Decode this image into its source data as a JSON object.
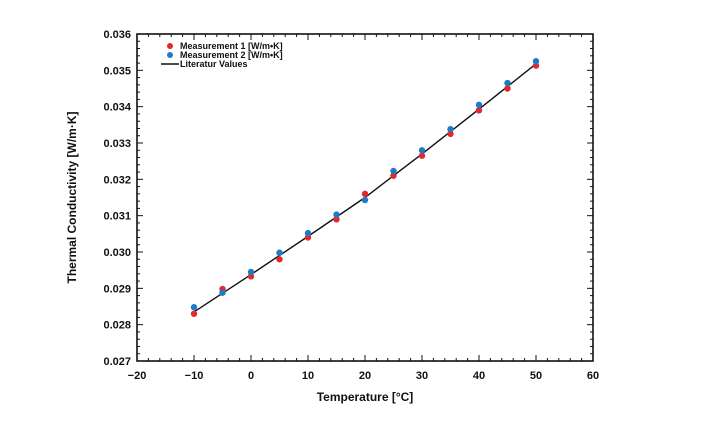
{
  "chart_data": {
    "type": "scatter",
    "xlabel": "Temperature  [°C]",
    "ylabel": "Thermal Conductivity [W/m·K]",
    "xlim": [
      -20,
      60
    ],
    "ylim": [
      0.027,
      0.036
    ],
    "x_ticks": [
      -20,
      -10,
      0,
      10,
      20,
      30,
      40,
      50,
      60
    ],
    "x_tick_labels": [
      "−20",
      "−10",
      "0",
      "10",
      "20",
      "30",
      "40",
      "50",
      "60"
    ],
    "y_ticks": [
      0.027,
      0.028,
      0.029,
      0.03,
      0.031,
      0.032,
      0.033,
      0.034,
      0.035,
      0.036
    ],
    "y_tick_labels": [
      "0.027",
      "0.028",
      "0.029",
      "0.030",
      "0.031",
      "0.032",
      "0.033",
      "0.034",
      "0.035",
      "0.036"
    ],
    "grid": false,
    "legend_position": "top-left",
    "series": [
      {
        "name": "Measurement 1 [W/m•K]",
        "kind": "scatter",
        "color": "#e0282e",
        "x": [
          -10,
          -5,
          0,
          5,
          10,
          15,
          20,
          25,
          30,
          35,
          40,
          45,
          50
        ],
        "y": [
          0.0283,
          0.02898,
          0.02933,
          0.0298,
          0.0304,
          0.0309,
          0.0316,
          0.0321,
          0.03265,
          0.03325,
          0.0339,
          0.0345,
          0.03513
        ]
      },
      {
        "name": "Measurement 2 [W/m•K]",
        "kind": "scatter",
        "color": "#1e7bc4",
        "x": [
          -10,
          -5,
          0,
          5,
          10,
          15,
          20,
          25,
          30,
          35,
          40,
          45,
          50
        ],
        "y": [
          0.02848,
          0.02888,
          0.02945,
          0.02998,
          0.03052,
          0.03103,
          0.03143,
          0.03223,
          0.0328,
          0.03338,
          0.03405,
          0.03465,
          0.03525
        ]
      },
      {
        "name": "Literatur Values",
        "kind": "line",
        "color": "#111111",
        "x": [
          -10,
          0,
          10,
          20,
          30,
          40,
          50
        ],
        "y": [
          0.02835,
          0.02938,
          0.03043,
          0.0315,
          0.0327,
          0.03393,
          0.03518
        ]
      }
    ]
  }
}
